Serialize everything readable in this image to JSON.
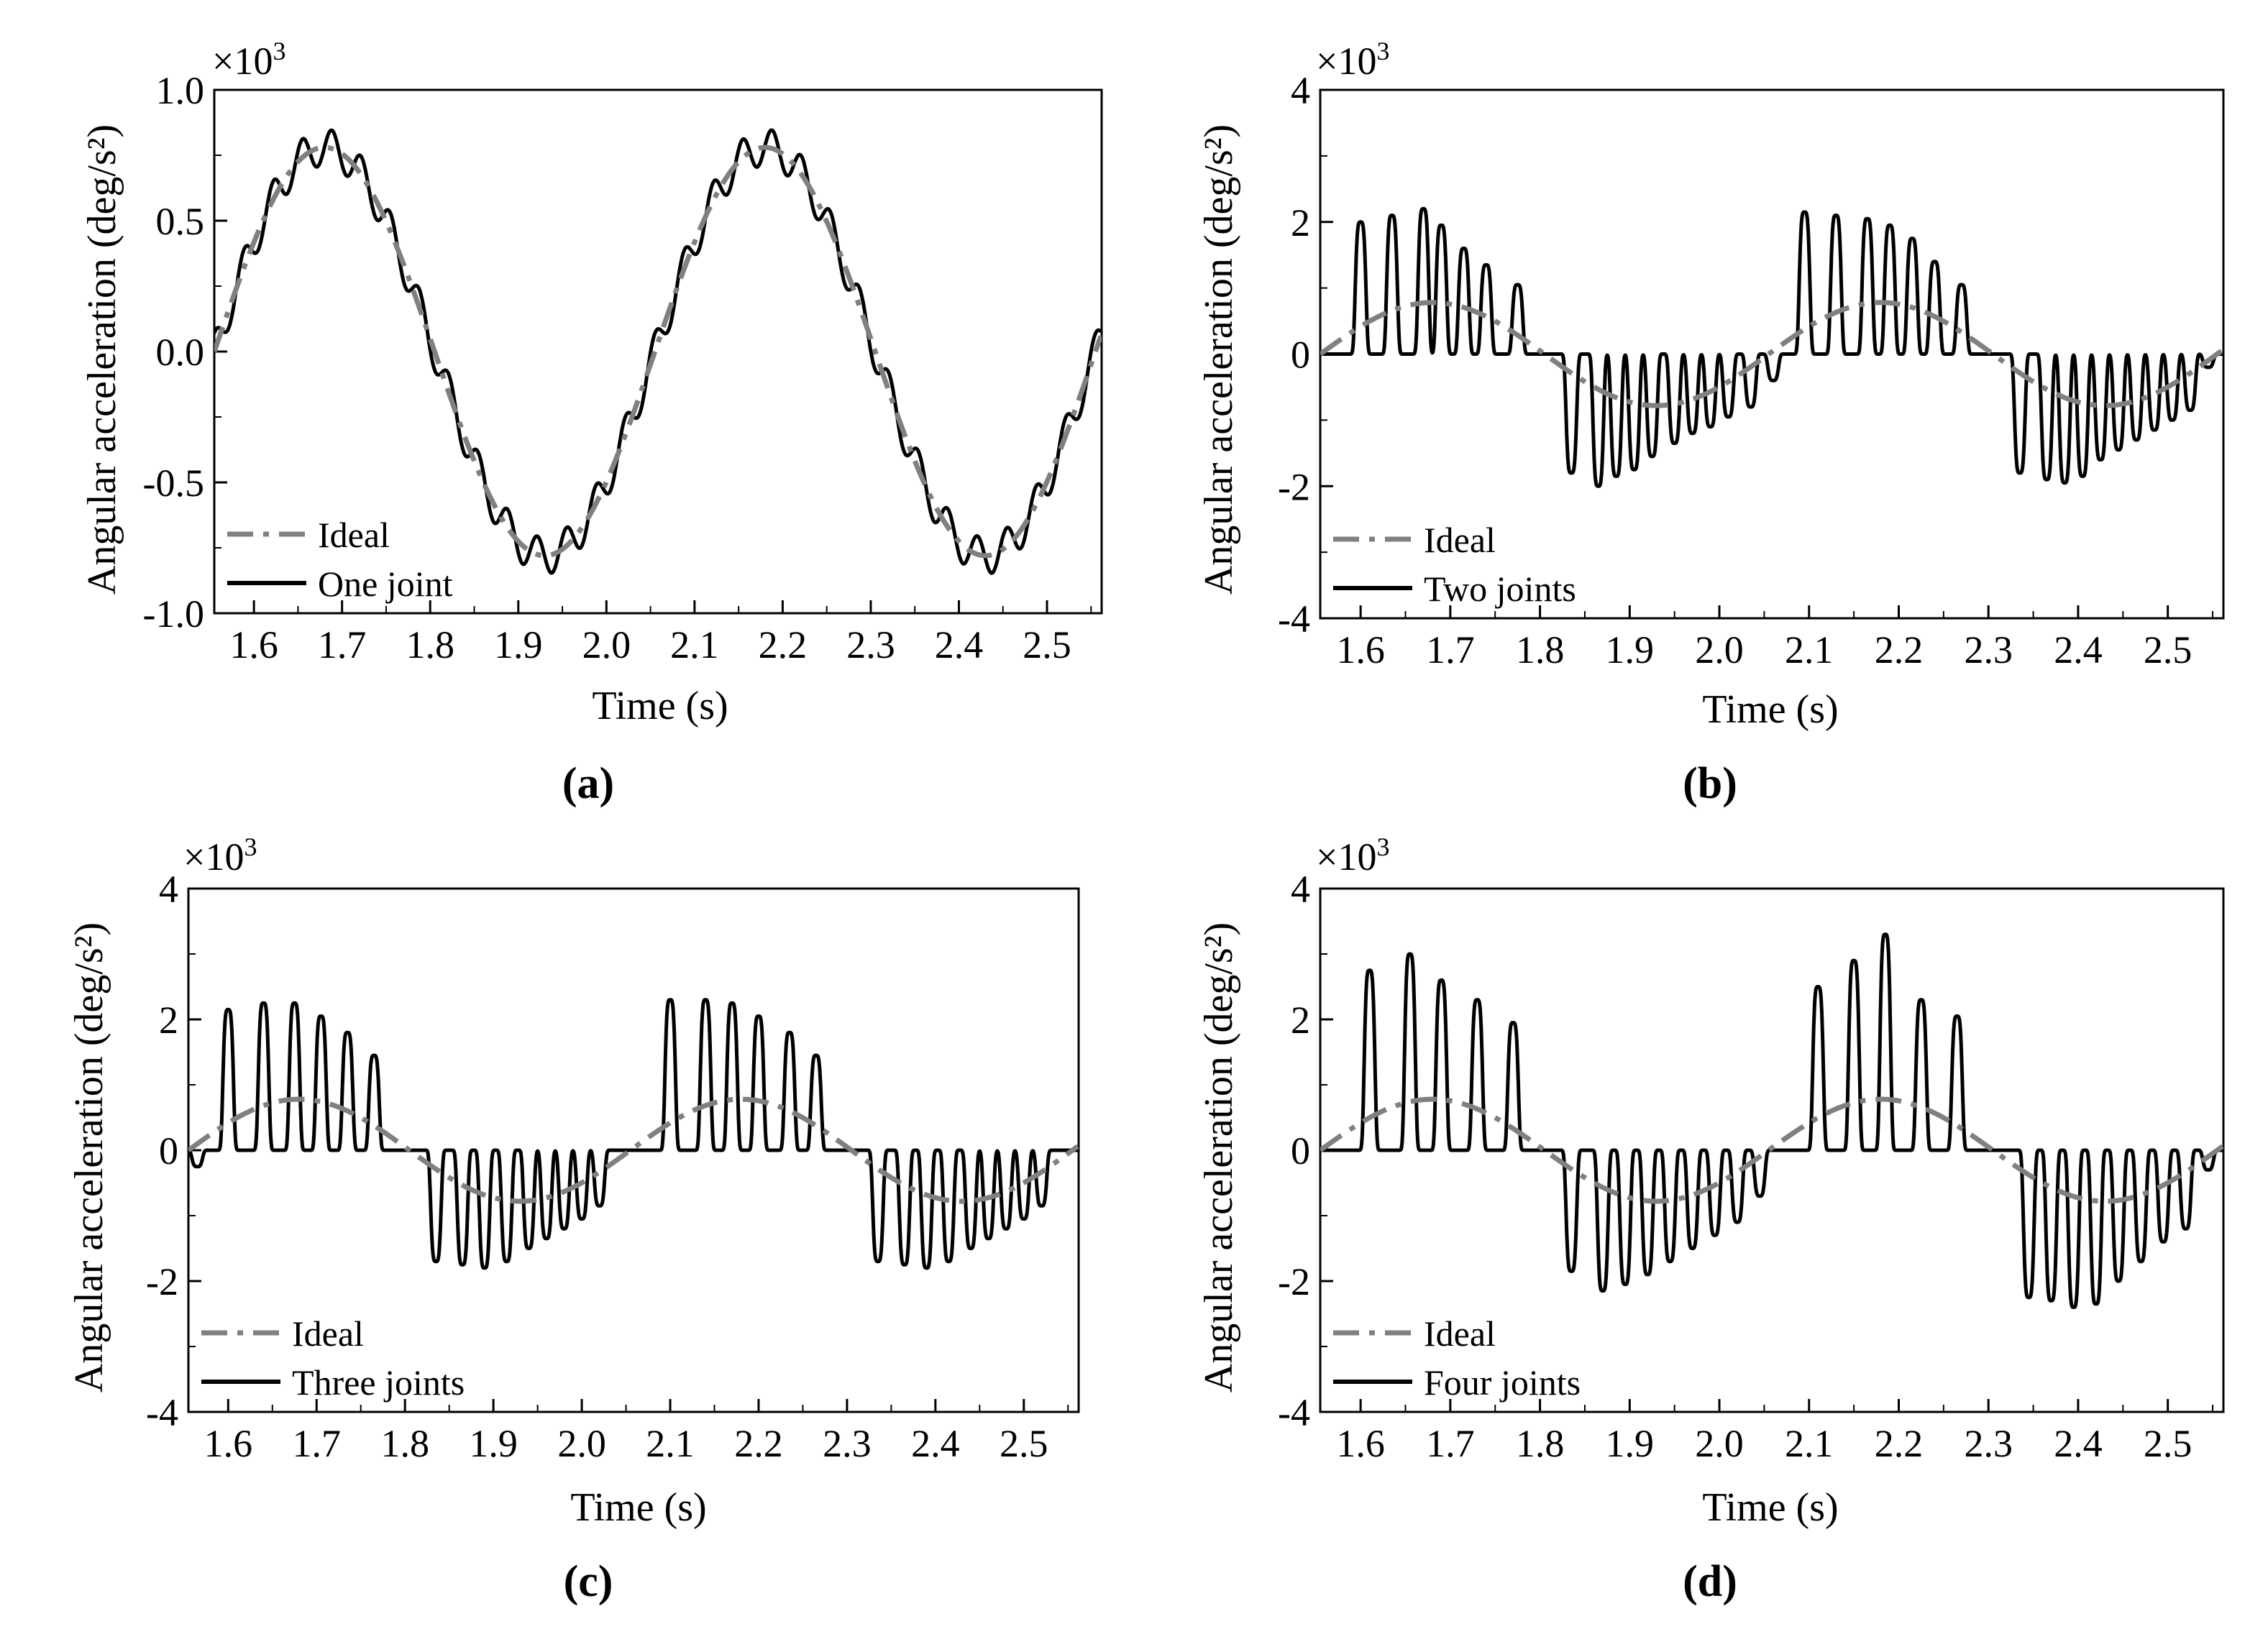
{
  "figure": {
    "multiplier_base": "×10",
    "multiplier_exp": "3"
  },
  "chart_data": [
    {
      "panel": "a",
      "caption": "(a)",
      "type": "line",
      "xlabel": "Time (s)",
      "ylabel": "Angular acceleration (deg/s²)",
      "xlim": [
        1.555,
        2.562
      ],
      "ylim": [
        -1.0,
        1.0
      ],
      "xticks": [
        "1.6",
        "1.7",
        "1.8",
        "1.9",
        "2.0",
        "2.1",
        "2.2",
        "2.3",
        "2.4",
        "2.5"
      ],
      "xtick_values": [
        1.6,
        1.7,
        1.8,
        1.9,
        2.0,
        2.1,
        2.2,
        2.3,
        2.4,
        2.5
      ],
      "yticks": [
        "1.0",
        "0.5",
        "0.0",
        "-0.5",
        "-1.0"
      ],
      "ytick_values": [
        1.0,
        0.5,
        0.0,
        -0.5,
        -1.0
      ],
      "legend": [
        "Ideal",
        "One joint"
      ],
      "series": [
        {
          "name": "Ideal",
          "style": "dashdot",
          "color": "#808080",
          "model": {
            "kind": "sine",
            "amplitude": 0.78,
            "period": 0.5,
            "peak_at": 1.68
          }
        },
        {
          "name": "One joint",
          "style": "solid",
          "color": "#000000",
          "model": {
            "kind": "sine_ripple",
            "amplitude": 0.78,
            "period": 0.5,
            "peak_at": 1.68,
            "ripple_amplitude": 0.07,
            "ripple_period": 0.0333
          },
          "peaks": [
            {
              "x": 1.68,
              "y": 0.89
            },
            {
              "x": 2.18,
              "y": 0.86
            }
          ],
          "troughs": [
            {
              "x": 1.945,
              "y": -0.81
            },
            {
              "x": 2.445,
              "y": -0.8
            }
          ]
        }
      ]
    },
    {
      "panel": "b",
      "caption": "(b)",
      "type": "line",
      "xlabel": "Time (s)",
      "ylabel": "Angular acceleration (deg/s²)",
      "xlim": [
        1.555,
        2.562
      ],
      "ylim": [
        -4,
        4
      ],
      "xticks": [
        "1.6",
        "1.7",
        "1.8",
        "1.9",
        "2.0",
        "2.1",
        "2.2",
        "2.3",
        "2.4",
        "2.5"
      ],
      "xtick_values": [
        1.6,
        1.7,
        1.8,
        1.9,
        2.0,
        2.1,
        2.2,
        2.3,
        2.4,
        2.5
      ],
      "yticks": [
        "4",
        "2",
        "0",
        "-2",
        "-4"
      ],
      "ytick_values": [
        4,
        2,
        0,
        -2,
        -4
      ],
      "legend": [
        "Ideal",
        "Two joints"
      ],
      "series": [
        {
          "name": "Ideal",
          "style": "dashdot",
          "color": "#808080",
          "model": {
            "kind": "sine",
            "amplitude": 0.78,
            "period": 0.5,
            "peak_at": 1.68
          }
        },
        {
          "name": "Two joints",
          "style": "solid",
          "color": "#000000",
          "pulses": [
            {
              "x": 1.6,
              "y": 2.0
            },
            {
              "x": 1.635,
              "y": 2.1
            },
            {
              "x": 1.67,
              "y": 2.2
            },
            {
              "x": 1.69,
              "y": 1.95
            },
            {
              "x": 1.715,
              "y": 1.6
            },
            {
              "x": 1.74,
              "y": 1.35
            },
            {
              "x": 1.775,
              "y": 1.05
            },
            {
              "x": 1.835,
              "y": -1.8
            },
            {
              "x": 1.865,
              "y": -2.0
            },
            {
              "x": 1.885,
              "y": -1.85
            },
            {
              "x": 1.905,
              "y": -1.75
            },
            {
              "x": 1.925,
              "y": -1.55
            },
            {
              "x": 1.95,
              "y": -1.35
            },
            {
              "x": 1.97,
              "y": -1.2
            },
            {
              "x": 1.99,
              "y": -1.1
            },
            {
              "x": 2.01,
              "y": -0.95
            },
            {
              "x": 2.035,
              "y": -0.8
            },
            {
              "x": 2.06,
              "y": -0.4
            },
            {
              "x": 2.095,
              "y": 2.15
            },
            {
              "x": 2.13,
              "y": 2.1
            },
            {
              "x": 2.165,
              "y": 2.05
            },
            {
              "x": 2.19,
              "y": 1.95
            },
            {
              "x": 2.215,
              "y": 1.75
            },
            {
              "x": 2.24,
              "y": 1.4
            },
            {
              "x": 2.27,
              "y": 1.05
            },
            {
              "x": 2.335,
              "y": -1.8
            },
            {
              "x": 2.365,
              "y": -1.9
            },
            {
              "x": 2.385,
              "y": -1.95
            },
            {
              "x": 2.405,
              "y": -1.85
            },
            {
              "x": 2.425,
              "y": -1.6
            },
            {
              "x": 2.445,
              "y": -1.45
            },
            {
              "x": 2.465,
              "y": -1.3
            },
            {
              "x": 2.485,
              "y": -1.15
            },
            {
              "x": 2.505,
              "y": -1.0
            },
            {
              "x": 2.525,
              "y": -0.85
            },
            {
              "x": 2.545,
              "y": -0.2
            }
          ]
        }
      ]
    },
    {
      "panel": "c",
      "caption": "(c)",
      "type": "line",
      "xlabel": "Time (s)",
      "ylabel": "Angular acceleration (deg/s²)",
      "xlim": [
        1.555,
        2.562
      ],
      "ylim": [
        -4,
        4
      ],
      "xticks": [
        "1.6",
        "1.7",
        "1.8",
        "1.9",
        "2.0",
        "2.1",
        "2.2",
        "2.3",
        "2.4",
        "2.5"
      ],
      "xtick_values": [
        1.6,
        1.7,
        1.8,
        1.9,
        2.0,
        2.1,
        2.2,
        2.3,
        2.4,
        2.5
      ],
      "yticks": [
        "4",
        "2",
        "0",
        "-2",
        "-4"
      ],
      "ytick_values": [
        4,
        2,
        0,
        -2,
        -4
      ],
      "legend": [
        "Ideal",
        "Three joints"
      ],
      "series": [
        {
          "name": "Ideal",
          "style": "dashdot",
          "color": "#808080",
          "model": {
            "kind": "sine",
            "amplitude": 0.78,
            "period": 0.5,
            "peak_at": 1.68
          }
        },
        {
          "name": "Three joints",
          "style": "solid",
          "color": "#000000",
          "pulses": [
            {
              "x": 1.565,
              "y": -0.25
            },
            {
              "x": 1.6,
              "y": 2.15
            },
            {
              "x": 1.64,
              "y": 2.25
            },
            {
              "x": 1.675,
              "y": 2.25
            },
            {
              "x": 1.705,
              "y": 2.05
            },
            {
              "x": 1.735,
              "y": 1.8
            },
            {
              "x": 1.765,
              "y": 1.45
            },
            {
              "x": 1.835,
              "y": -1.7
            },
            {
              "x": 1.865,
              "y": -1.75
            },
            {
              "x": 1.89,
              "y": -1.8
            },
            {
              "x": 1.915,
              "y": -1.7
            },
            {
              "x": 1.94,
              "y": -1.5
            },
            {
              "x": 1.96,
              "y": -1.35
            },
            {
              "x": 1.98,
              "y": -1.2
            },
            {
              "x": 2.0,
              "y": -1.05
            },
            {
              "x": 2.02,
              "y": -0.85
            },
            {
              "x": 2.1,
              "y": 2.3
            },
            {
              "x": 2.14,
              "y": 2.3
            },
            {
              "x": 2.17,
              "y": 2.25
            },
            {
              "x": 2.2,
              "y": 2.05
            },
            {
              "x": 2.235,
              "y": 1.8
            },
            {
              "x": 2.265,
              "y": 1.45
            },
            {
              "x": 2.335,
              "y": -1.7
            },
            {
              "x": 2.365,
              "y": -1.75
            },
            {
              "x": 2.39,
              "y": -1.8
            },
            {
              "x": 2.415,
              "y": -1.7
            },
            {
              "x": 2.44,
              "y": -1.5
            },
            {
              "x": 2.46,
              "y": -1.35
            },
            {
              "x": 2.48,
              "y": -1.2
            },
            {
              "x": 2.5,
              "y": -1.05
            },
            {
              "x": 2.52,
              "y": -0.85
            }
          ]
        }
      ]
    },
    {
      "panel": "d",
      "caption": "(d)",
      "type": "line",
      "xlabel": "Time (s)",
      "ylabel": "Angular acceleration (deg/s²)",
      "xlim": [
        1.555,
        2.562
      ],
      "ylim": [
        -4,
        4
      ],
      "xticks": [
        "1.6",
        "1.7",
        "1.8",
        "1.9",
        "2.0",
        "2.1",
        "2.2",
        "2.3",
        "2.4",
        "2.5"
      ],
      "xtick_values": [
        1.6,
        1.7,
        1.8,
        1.9,
        2.0,
        2.1,
        2.2,
        2.3,
        2.4,
        2.5
      ],
      "yticks": [
        "4",
        "2",
        "0",
        "-2",
        "-4"
      ],
      "ytick_values": [
        4,
        2,
        0,
        -2,
        -4
      ],
      "legend": [
        "Ideal",
        "Four joints"
      ],
      "series": [
        {
          "name": "Ideal",
          "style": "dashdot",
          "color": "#808080",
          "model": {
            "kind": "sine",
            "amplitude": 0.78,
            "period": 0.5,
            "peak_at": 1.68
          }
        },
        {
          "name": "Four joints",
          "style": "solid",
          "color": "#000000",
          "pulses": [
            {
              "x": 1.61,
              "y": 2.75
            },
            {
              "x": 1.655,
              "y": 3.0
            },
            {
              "x": 1.69,
              "y": 2.6
            },
            {
              "x": 1.73,
              "y": 2.3
            },
            {
              "x": 1.77,
              "y": 1.95
            },
            {
              "x": 1.835,
              "y": -1.85
            },
            {
              "x": 1.87,
              "y": -2.15
            },
            {
              "x": 1.895,
              "y": -2.05
            },
            {
              "x": 1.92,
              "y": -1.9
            },
            {
              "x": 1.945,
              "y": -1.7
            },
            {
              "x": 1.97,
              "y": -1.5
            },
            {
              "x": 1.995,
              "y": -1.3
            },
            {
              "x": 2.02,
              "y": -1.1
            },
            {
              "x": 2.045,
              "y": -0.7
            },
            {
              "x": 2.11,
              "y": 2.5
            },
            {
              "x": 2.15,
              "y": 2.9
            },
            {
              "x": 2.185,
              "y": 3.3
            },
            {
              "x": 2.225,
              "y": 2.3
            },
            {
              "x": 2.265,
              "y": 2.05
            },
            {
              "x": 2.345,
              "y": -2.25
            },
            {
              "x": 2.37,
              "y": -2.3
            },
            {
              "x": 2.395,
              "y": -2.4
            },
            {
              "x": 2.42,
              "y": -2.35
            },
            {
              "x": 2.445,
              "y": -2.0
            },
            {
              "x": 2.47,
              "y": -1.7
            },
            {
              "x": 2.495,
              "y": -1.4
            },
            {
              "x": 2.52,
              "y": -1.2
            },
            {
              "x": 2.545,
              "y": -0.3
            }
          ]
        }
      ]
    }
  ]
}
